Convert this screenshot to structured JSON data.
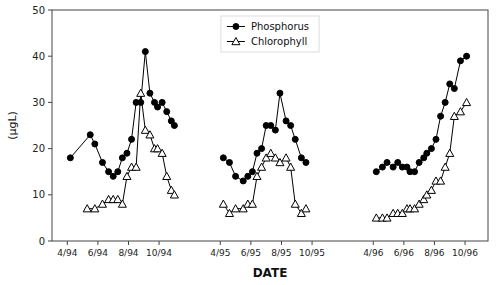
{
  "chart_data": {
    "type": "line",
    "xlabel": "DATE",
    "ylabel": "(μgL)",
    "xlim": [
      -1,
      27.5
    ],
    "xticks": [
      {
        "value": 0,
        "label": "4/94"
      },
      {
        "value": 2,
        "label": "6/94"
      },
      {
        "value": 4,
        "label": "8/94"
      },
      {
        "value": 6,
        "label": "10/94"
      },
      {
        "value": 10,
        "label": "4/95"
      },
      {
        "value": 12,
        "label": "6/95"
      },
      {
        "value": 14,
        "label": "8/95"
      },
      {
        "value": 16,
        "label": "10/95"
      },
      {
        "value": 20,
        "label": "4/96"
      },
      {
        "value": 22,
        "label": "6/96"
      },
      {
        "value": 24,
        "label": "8/96"
      },
      {
        "value": 26,
        "label": "10/96"
      }
    ],
    "ylim": [
      0,
      50
    ],
    "yticks": [
      0,
      10,
      20,
      30,
      40,
      50
    ],
    "grid": false,
    "legend": "upper center",
    "series": [
      {
        "name": "Phosphorus",
        "color": "#000000",
        "marker": "circle",
        "x": [
          0.2,
          1.5,
          1.8,
          2.3,
          2.7,
          3.0,
          3.3,
          3.6,
          3.9,
          4.2,
          4.5,
          4.8,
          5.1,
          5.4,
          5.7,
          5.9,
          6.2,
          6.5,
          6.8,
          7.0,
          null,
          10.2,
          10.6,
          11.0,
          11.5,
          11.8,
          12.1,
          12.4,
          12.7,
          13.0,
          13.3,
          13.6,
          13.9,
          14.3,
          14.6,
          14.9,
          15.3,
          15.6,
          null,
          20.2,
          20.6,
          20.9,
          21.3,
          21.6,
          21.9,
          22.2,
          22.4,
          22.7,
          23.0,
          23.3,
          23.5,
          23.8,
          24.1,
          24.4,
          24.7,
          25.0,
          25.3,
          25.7,
          26.1
        ],
        "values": [
          18,
          23,
          21,
          17,
          15,
          14,
          15,
          18,
          19,
          22,
          30,
          30,
          41,
          32,
          30,
          29,
          30,
          28,
          26,
          25,
          null,
          18,
          17,
          14,
          13,
          14,
          15,
          19,
          20,
          25,
          25,
          24,
          32,
          26,
          25,
          22,
          18,
          17,
          null,
          15,
          16,
          17,
          16,
          17,
          16,
          16,
          15,
          15,
          17,
          18,
          19,
          20,
          22,
          27,
          30,
          34,
          33,
          39,
          40
        ]
      },
      {
        "name": "Chlorophyll",
        "color": "#000000",
        "marker": "open-triangle",
        "x": [
          1.3,
          1.8,
          2.3,
          2.7,
          3.0,
          3.3,
          3.6,
          3.9,
          4.2,
          4.5,
          4.8,
          5.1,
          5.4,
          5.7,
          5.9,
          6.2,
          6.5,
          6.8,
          7.0,
          null,
          10.2,
          10.6,
          11.0,
          11.5,
          11.8,
          12.1,
          12.4,
          12.7,
          13.0,
          13.3,
          13.6,
          13.9,
          14.3,
          14.6,
          14.9,
          15.3,
          15.6,
          null,
          20.2,
          20.6,
          20.9,
          21.3,
          21.6,
          21.9,
          22.2,
          22.4,
          22.7,
          23.0,
          23.3,
          23.5,
          23.8,
          24.1,
          24.4,
          24.7,
          25.0,
          25.3,
          25.7,
          26.1
        ],
        "values": [
          7,
          7,
          8,
          9,
          9,
          9,
          8,
          14,
          16,
          16,
          32,
          24,
          23,
          20,
          20,
          19,
          14,
          11,
          10,
          null,
          8,
          6,
          7,
          7,
          8,
          8,
          14,
          16,
          18,
          19,
          18,
          17,
          18,
          16,
          8,
          6,
          7,
          null,
          5,
          5,
          5,
          6,
          6,
          6,
          7,
          7,
          7,
          8,
          9,
          10,
          11,
          13,
          13,
          16,
          19,
          27,
          28,
          30
        ]
      }
    ]
  }
}
